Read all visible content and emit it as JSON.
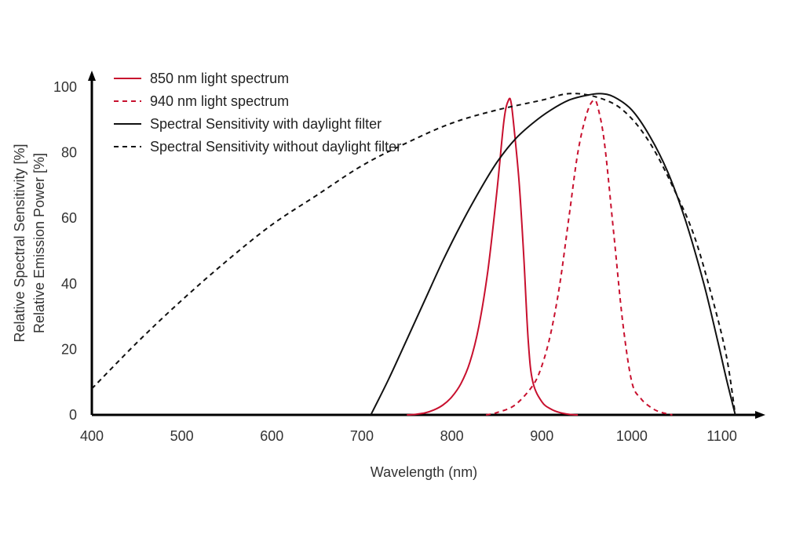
{
  "colors": {
    "red": "#c8102e",
    "black": "#111111",
    "axis": "#000000",
    "text": "#333333"
  },
  "chart_data": {
    "type": "line",
    "xlabel": "Wavelength (nm)",
    "ylabel_lines": [
      "Relative Spectral Sensitivity [%]",
      "Relative Emission Power [%]"
    ],
    "xlim": [
      400,
      1115
    ],
    "ylim": [
      0,
      100
    ],
    "x_ticks": [
      400,
      500,
      600,
      700,
      800,
      900,
      1000,
      1100
    ],
    "y_ticks": [
      0,
      20,
      40,
      60,
      80,
      100
    ],
    "grid": false,
    "legend_position": "top-left",
    "series": [
      {
        "name": "850 nm light spectrum",
        "color": "red",
        "style": "solid",
        "points": [
          [
            750,
            0
          ],
          [
            760,
            0.2
          ],
          [
            770,
            0.6
          ],
          [
            780,
            1.5
          ],
          [
            790,
            3
          ],
          [
            800,
            5.5
          ],
          [
            810,
            9.5
          ],
          [
            820,
            16
          ],
          [
            830,
            27
          ],
          [
            840,
            44
          ],
          [
            850,
            68
          ],
          [
            858,
            90
          ],
          [
            863,
            96
          ],
          [
            866,
            95
          ],
          [
            870,
            85
          ],
          [
            875,
            70
          ],
          [
            880,
            48
          ],
          [
            885,
            22
          ],
          [
            890,
            10
          ],
          [
            900,
            4
          ],
          [
            910,
            1.8
          ],
          [
            920,
            0.7
          ],
          [
            930,
            0.2
          ],
          [
            940,
            0
          ]
        ]
      },
      {
        "name": "940 nm light spectrum",
        "color": "red",
        "style": "dashed",
        "points": [
          [
            838,
            0
          ],
          [
            850,
            0.7
          ],
          [
            870,
            3
          ],
          [
            890,
            9
          ],
          [
            900,
            15
          ],
          [
            910,
            25
          ],
          [
            920,
            40
          ],
          [
            930,
            60
          ],
          [
            940,
            80
          ],
          [
            950,
            92
          ],
          [
            958,
            96
          ],
          [
            963,
            93
          ],
          [
            970,
            82
          ],
          [
            980,
            55
          ],
          [
            990,
            28
          ],
          [
            1000,
            10
          ],
          [
            1010,
            5
          ],
          [
            1020,
            2.5
          ],
          [
            1030,
            1
          ],
          [
            1045,
            0
          ]
        ]
      },
      {
        "name": "Spectral Sensitivity with daylight filter",
        "color": "black",
        "style": "solid",
        "points": [
          [
            710,
            0
          ],
          [
            730,
            11
          ],
          [
            750,
            23
          ],
          [
            770,
            35
          ],
          [
            790,
            47
          ],
          [
            810,
            58
          ],
          [
            830,
            68
          ],
          [
            850,
            77
          ],
          [
            870,
            84
          ],
          [
            890,
            89
          ],
          [
            910,
            93
          ],
          [
            930,
            96
          ],
          [
            950,
            97.5
          ],
          [
            965,
            98
          ],
          [
            980,
            97
          ],
          [
            1000,
            93
          ],
          [
            1020,
            85
          ],
          [
            1040,
            74
          ],
          [
            1060,
            59
          ],
          [
            1080,
            40
          ],
          [
            1095,
            23
          ],
          [
            1105,
            11
          ],
          [
            1115,
            0
          ]
        ]
      },
      {
        "name": "Spectral Sensitivity without daylight filter",
        "color": "black",
        "style": "dashed",
        "points": [
          [
            400,
            8
          ],
          [
            450,
            22
          ],
          [
            500,
            35
          ],
          [
            550,
            47
          ],
          [
            600,
            58
          ],
          [
            650,
            67
          ],
          [
            700,
            76
          ],
          [
            750,
            83
          ],
          [
            800,
            89
          ],
          [
            850,
            93
          ],
          [
            900,
            96
          ],
          [
            930,
            98
          ],
          [
            960,
            97
          ],
          [
            990,
            93
          ],
          [
            1020,
            83
          ],
          [
            1050,
            67
          ],
          [
            1070,
            54
          ],
          [
            1090,
            35
          ],
          [
            1105,
            18
          ],
          [
            1115,
            0
          ]
        ]
      }
    ]
  }
}
